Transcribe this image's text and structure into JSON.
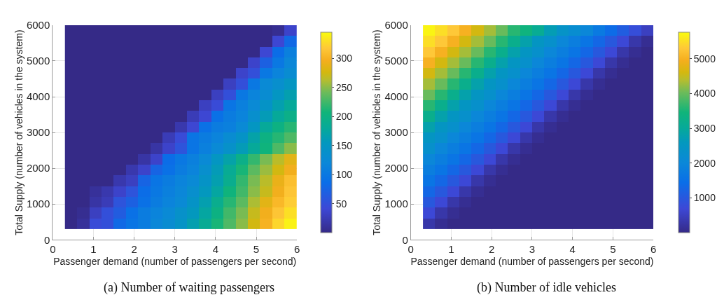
{
  "chart_data": [
    {
      "type": "heatmap",
      "xlabel": "Passenger demand (number of passengers per second)",
      "ylabel": "Total Supply (number of vehicles in the system)",
      "annotations": [
        "(a) Number of waiting passengers"
      ],
      "x": [
        0.45,
        0.75,
        1.05,
        1.35,
        1.65,
        1.95,
        2.25,
        2.55,
        2.85,
        3.15,
        3.45,
        3.75,
        4.05,
        4.35,
        4.65,
        4.95,
        5.25,
        5.55,
        5.85
      ],
      "y": [
        5850,
        5550,
        5250,
        4950,
        4650,
        4350,
        4050,
        3750,
        3450,
        3150,
        2850,
        2550,
        2250,
        1950,
        1650,
        1350,
        1050,
        750,
        450
      ],
      "cells": [
        [
          0,
          0,
          0,
          0,
          0,
          0,
          0,
          0,
          0,
          0,
          0,
          0,
          0,
          0,
          0,
          0,
          0,
          5,
          35
        ],
        [
          0,
          0,
          0,
          0,
          0,
          0,
          0,
          0,
          0,
          0,
          0,
          0,
          0,
          0,
          0,
          0,
          0,
          40,
          80
        ],
        [
          0,
          0,
          0,
          0,
          0,
          0,
          0,
          0,
          0,
          0,
          0,
          0,
          0,
          0,
          0,
          0,
          40,
          85,
          110
        ],
        [
          0,
          0,
          0,
          0,
          0,
          0,
          0,
          0,
          0,
          0,
          0,
          0,
          0,
          0,
          0,
          35,
          70,
          100,
          120
        ],
        [
          0,
          0,
          0,
          0,
          0,
          0,
          0,
          0,
          0,
          0,
          0,
          0,
          0,
          0,
          35,
          50,
          100,
          115,
          130
        ],
        [
          0,
          0,
          0,
          0,
          0,
          0,
          0,
          0,
          0,
          0,
          0,
          0,
          0,
          30,
          50,
          100,
          125,
          135,
          150
        ],
        [
          0,
          0,
          0,
          0,
          0,
          0,
          0,
          0,
          0,
          0,
          0,
          0,
          30,
          50,
          100,
          115,
          130,
          150,
          165
        ],
        [
          0,
          0,
          0,
          0,
          0,
          0,
          0,
          0,
          0,
          0,
          0,
          30,
          45,
          95,
          110,
          125,
          145,
          165,
          180
        ],
        [
          0,
          0,
          0,
          0,
          0,
          0,
          0,
          0,
          0,
          0,
          25,
          40,
          90,
          105,
          115,
          135,
          160,
          180,
          195
        ],
        [
          0,
          0,
          0,
          0,
          0,
          0,
          0,
          0,
          0,
          20,
          40,
          90,
          105,
          110,
          125,
          150,
          180,
          200,
          215
        ],
        [
          0,
          0,
          0,
          0,
          0,
          0,
          0,
          0,
          25,
          45,
          95,
          105,
          115,
          130,
          145,
          170,
          200,
          215,
          230
        ],
        [
          0,
          0,
          0,
          0,
          0,
          0,
          0,
          15,
          35,
          55,
          95,
          110,
          125,
          140,
          160,
          180,
          205,
          230,
          250
        ],
        [
          0,
          0,
          0,
          0,
          0,
          0,
          15,
          35,
          85,
          100,
          110,
          125,
          150,
          170,
          195,
          220,
          245,
          265,
          285
        ],
        [
          0,
          0,
          0,
          0,
          0,
          20,
          35,
          75,
          90,
          105,
          115,
          135,
          160,
          185,
          210,
          235,
          255,
          275,
          295
        ],
        [
          0,
          0,
          0,
          0,
          20,
          30,
          75,
          95,
          105,
          115,
          125,
          145,
          165,
          190,
          220,
          245,
          265,
          290,
          310
        ],
        [
          0,
          0,
          10,
          20,
          35,
          55,
          85,
          100,
          110,
          120,
          135,
          155,
          175,
          205,
          225,
          250,
          270,
          295,
          315
        ],
        [
          0,
          0,
          15,
          25,
          55,
          70,
          90,
          105,
          115,
          125,
          145,
          165,
          190,
          215,
          235,
          260,
          285,
          305,
          320
        ],
        [
          0,
          5,
          30,
          50,
          65,
          90,
          105,
          115,
          125,
          140,
          155,
          175,
          200,
          225,
          245,
          270,
          295,
          315,
          330
        ],
        [
          0,
          10,
          45,
          50,
          80,
          95,
          105,
          120,
          130,
          145,
          165,
          185,
          210,
          230,
          250,
          275,
          300,
          325,
          340
        ]
      ],
      "clim": [
        0,
        345
      ],
      "cticks": [
        50,
        100,
        150,
        200,
        250,
        300
      ],
      "xlim": [
        0,
        6
      ],
      "xticks": [
        0,
        1,
        2,
        3,
        4,
        5,
        6
      ],
      "ylim": [
        0,
        6000
      ],
      "yticks": [
        0,
        1000,
        2000,
        3000,
        4000,
        5000,
        6000
      ],
      "grid": true
    },
    {
      "type": "heatmap",
      "xlabel": "Passenger demand (number of passengers per second)",
      "ylabel": "Total Supply (number of vehicles in the system)",
      "annotations": [
        "(b) Number of idle vehicles"
      ],
      "x": [
        0.45,
        0.75,
        1.05,
        1.35,
        1.65,
        1.95,
        2.25,
        2.55,
        2.85,
        3.15,
        3.45,
        3.75,
        4.05,
        4.35,
        4.65,
        4.95,
        5.25,
        5.55,
        5.85
      ],
      "y": [
        5850,
        5550,
        5250,
        4950,
        4650,
        4350,
        4050,
        3750,
        3450,
        3150,
        2850,
        2550,
        2250,
        1950,
        1650,
        1350,
        1050,
        750,
        450
      ],
      "cells": [
        [
          5700,
          5500,
          5300,
          5000,
          4600,
          4300,
          4000,
          3600,
          3400,
          3100,
          2700,
          2400,
          2200,
          2000,
          1700,
          1400,
          1100,
          800,
          500
        ],
        [
          5500,
          5300,
          5000,
          4600,
          4300,
          4000,
          3600,
          3200,
          2800,
          2500,
          2300,
          2000,
          1800,
          1600,
          1300,
          1000,
          700,
          300,
          100
        ],
        [
          5300,
          5000,
          4600,
          4300,
          4000,
          3600,
          3200,
          2800,
          2500,
          2300,
          2000,
          1800,
          1600,
          1300,
          1000,
          700,
          300,
          100,
          0
        ],
        [
          5000,
          4600,
          4300,
          4000,
          3600,
          3200,
          2800,
          2500,
          2300,
          2000,
          1800,
          1600,
          1300,
          1000,
          700,
          300,
          100,
          0,
          0
        ],
        [
          4600,
          4300,
          4000,
          3600,
          3200,
          2800,
          2500,
          2300,
          2000,
          1800,
          1600,
          1300,
          1000,
          700,
          300,
          100,
          0,
          0,
          0
        ],
        [
          4300,
          4000,
          3600,
          3200,
          2800,
          2500,
          2300,
          2000,
          1800,
          1600,
          1300,
          1000,
          700,
          300,
          100,
          0,
          0,
          0,
          0
        ],
        [
          4000,
          3600,
          3200,
          2800,
          2500,
          2300,
          2000,
          1800,
          1600,
          1300,
          1000,
          700,
          300,
          100,
          0,
          0,
          0,
          0,
          0
        ],
        [
          3600,
          3200,
          2800,
          2500,
          2300,
          2000,
          1800,
          1600,
          1300,
          1000,
          700,
          300,
          100,
          0,
          0,
          0,
          0,
          0,
          0
        ],
        [
          3200,
          2800,
          2500,
          2300,
          2000,
          1800,
          1600,
          1300,
          1000,
          700,
          300,
          100,
          0,
          0,
          0,
          0,
          0,
          0,
          0
        ],
        [
          2800,
          2500,
          2300,
          2000,
          1800,
          1600,
          1300,
          1000,
          700,
          300,
          100,
          0,
          0,
          0,
          0,
          0,
          0,
          0,
          0
        ],
        [
          2500,
          2300,
          2000,
          1800,
          1600,
          1300,
          1000,
          700,
          300,
          100,
          0,
          0,
          0,
          0,
          0,
          0,
          0,
          0,
          0
        ],
        [
          2300,
          2000,
          1800,
          1600,
          1300,
          1000,
          700,
          300,
          100,
          0,
          0,
          0,
          0,
          0,
          0,
          0,
          0,
          0,
          0
        ],
        [
          2000,
          1800,
          1600,
          1300,
          1000,
          700,
          300,
          100,
          0,
          0,
          0,
          0,
          0,
          0,
          0,
          0,
          0,
          0,
          0
        ],
        [
          1800,
          1600,
          1300,
          1000,
          700,
          300,
          100,
          0,
          0,
          0,
          0,
          0,
          0,
          0,
          0,
          0,
          0,
          0,
          0
        ],
        [
          1600,
          1300,
          1000,
          700,
          300,
          100,
          0,
          0,
          0,
          0,
          0,
          0,
          0,
          0,
          0,
          0,
          0,
          0,
          0
        ],
        [
          1300,
          1000,
          700,
          300,
          100,
          0,
          0,
          0,
          0,
          0,
          0,
          0,
          0,
          0,
          0,
          0,
          0,
          0,
          0
        ],
        [
          1000,
          700,
          300,
          100,
          0,
          0,
          0,
          0,
          0,
          0,
          0,
          0,
          0,
          0,
          0,
          0,
          0,
          0,
          0
        ],
        [
          700,
          300,
          100,
          0,
          0,
          0,
          0,
          0,
          0,
          0,
          0,
          0,
          0,
          0,
          0,
          0,
          0,
          0,
          0
        ],
        [
          300,
          100,
          0,
          0,
          0,
          0,
          0,
          0,
          0,
          0,
          0,
          0,
          0,
          0,
          0,
          0,
          0,
          0,
          0
        ]
      ],
      "clim": [
        0,
        5760
      ],
      "cticks": [
        1000,
        2000,
        3000,
        4000,
        5000
      ],
      "xlim": [
        0,
        6
      ],
      "xticks": [
        0,
        1,
        2,
        3,
        4,
        5,
        6
      ],
      "ylim": [
        0,
        6000
      ],
      "yticks": [
        0,
        1000,
        2000,
        3000,
        4000,
        5000,
        6000
      ],
      "grid": true
    }
  ]
}
